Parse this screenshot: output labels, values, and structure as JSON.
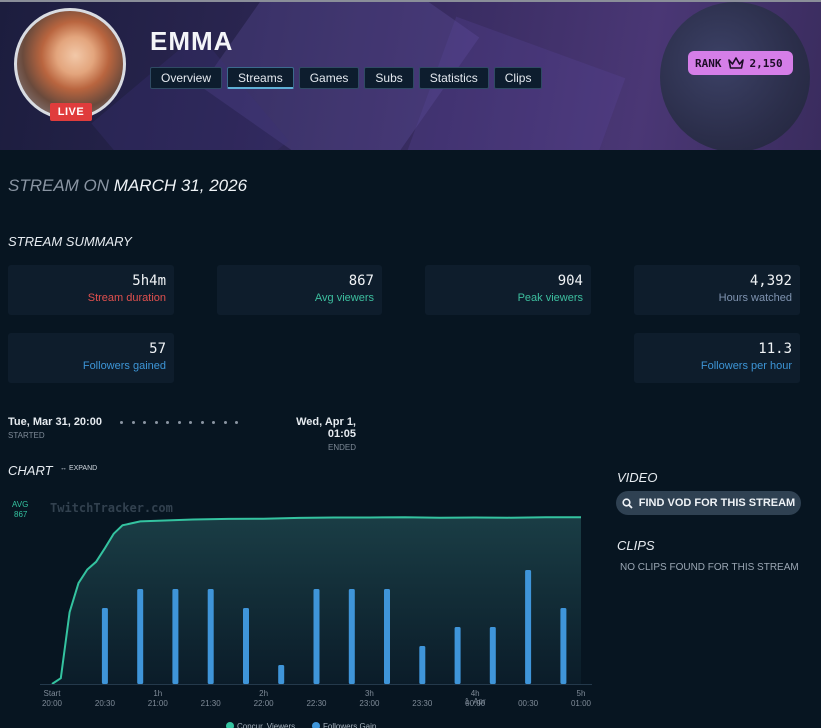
{
  "channel": {
    "name": "EMMA",
    "live_badge": "LIVE",
    "rank_label": "RANK",
    "rank_value": "2,150"
  },
  "tabs": [
    {
      "label": "Overview"
    },
    {
      "label": "Streams"
    },
    {
      "label": "Games"
    },
    {
      "label": "Subs"
    },
    {
      "label": "Statistics"
    },
    {
      "label": "Clips"
    }
  ],
  "page": {
    "title_prefix": "STREAM ON",
    "title_date": "MARCH 31, 2026"
  },
  "summary": {
    "heading": "STREAM SUMMARY",
    "cards": [
      {
        "value": "5h4m",
        "label": "Stream duration",
        "color": "#e0504e"
      },
      {
        "value": "867",
        "label": "Avg viewers",
        "color": "#3dbf9f"
      },
      {
        "value": "904",
        "label": "Peak viewers",
        "color": "#3dbf9f"
      },
      {
        "value": "4,392",
        "label": "Hours watched",
        "color": "#7f93b0"
      },
      {
        "value": "57",
        "label": "Followers gained",
        "color": "#3d95d6"
      },
      {
        "value": "11.3",
        "label": "Followers per hour",
        "color": "#3d95d6"
      }
    ]
  },
  "timeline": {
    "started": "Tue, Mar 31, 20:00",
    "started_label": "STARTED",
    "ended": "Wed, Apr 1, 01:05",
    "ended_label": "ENDED"
  },
  "chart_section": {
    "heading": "CHART",
    "expand_label": "↔ EXPAND"
  },
  "video": {
    "heading": "VIDEO",
    "button_label": "FIND VOD FOR THIS STREAM"
  },
  "clips": {
    "heading": "CLIPS",
    "empty_text": "NO CLIPS FOUND FOR THIS STREAM"
  },
  "chart_data": {
    "type": "line",
    "title": "",
    "avg_label": "AVG",
    "avg_value": 867,
    "watermark": "TwitchTracker.com",
    "x_ticks": [
      {
        "time": "20:00",
        "label": "Start",
        "min": 0
      },
      {
        "time": "20:30",
        "label": "",
        "min": 30
      },
      {
        "time": "21:00",
        "label": "1h",
        "min": 60
      },
      {
        "time": "21:30",
        "label": "",
        "min": 90
      },
      {
        "time": "22:00",
        "label": "2h",
        "min": 120
      },
      {
        "time": "22:30",
        "label": "",
        "min": 150
      },
      {
        "time": "23:00",
        "label": "3h",
        "min": 180
      },
      {
        "time": "23:30",
        "label": "",
        "min": 210
      },
      {
        "time": "00:00",
        "label": "4h",
        "date": "1. Apr",
        "min": 240
      },
      {
        "time": "00:30",
        "label": "",
        "min": 270
      },
      {
        "time": "01:00",
        "label": "5h",
        "min": 300
      }
    ],
    "x_range_min": [
      0,
      300
    ],
    "viewers_ylim": [
      0,
      1000
    ],
    "followers_ylim": [
      0,
      10
    ],
    "series": [
      {
        "name": "Concur. Viewers",
        "color": "#34c3a0",
        "kind": "area",
        "points": [
          [
            0,
            0
          ],
          [
            5,
            30
          ],
          [
            10,
            370
          ],
          [
            15,
            520
          ],
          [
            20,
            590
          ],
          [
            25,
            630
          ],
          [
            30,
            700
          ],
          [
            35,
            775
          ],
          [
            40,
            818
          ],
          [
            50,
            838
          ],
          [
            60,
            842
          ],
          [
            80,
            848
          ],
          [
            100,
            851
          ],
          [
            120,
            852
          ],
          [
            140,
            856
          ],
          [
            160,
            858
          ],
          [
            180,
            858
          ],
          [
            200,
            860
          ],
          [
            220,
            857
          ],
          [
            240,
            858
          ],
          [
            260,
            857
          ],
          [
            280,
            860
          ],
          [
            300,
            860
          ]
        ]
      },
      {
        "name": "Followers Gain",
        "color": "#3f95d9",
        "kind": "bar",
        "points": [
          [
            30,
            4
          ],
          [
            50,
            5
          ],
          [
            70,
            5
          ],
          [
            90,
            5
          ],
          [
            110,
            4
          ],
          [
            130,
            1
          ],
          [
            150,
            5
          ],
          [
            170,
            5
          ],
          [
            190,
            5
          ],
          [
            210,
            2
          ],
          [
            230,
            3
          ],
          [
            250,
            3
          ],
          [
            270,
            6
          ],
          [
            290,
            4
          ]
        ]
      }
    ]
  }
}
